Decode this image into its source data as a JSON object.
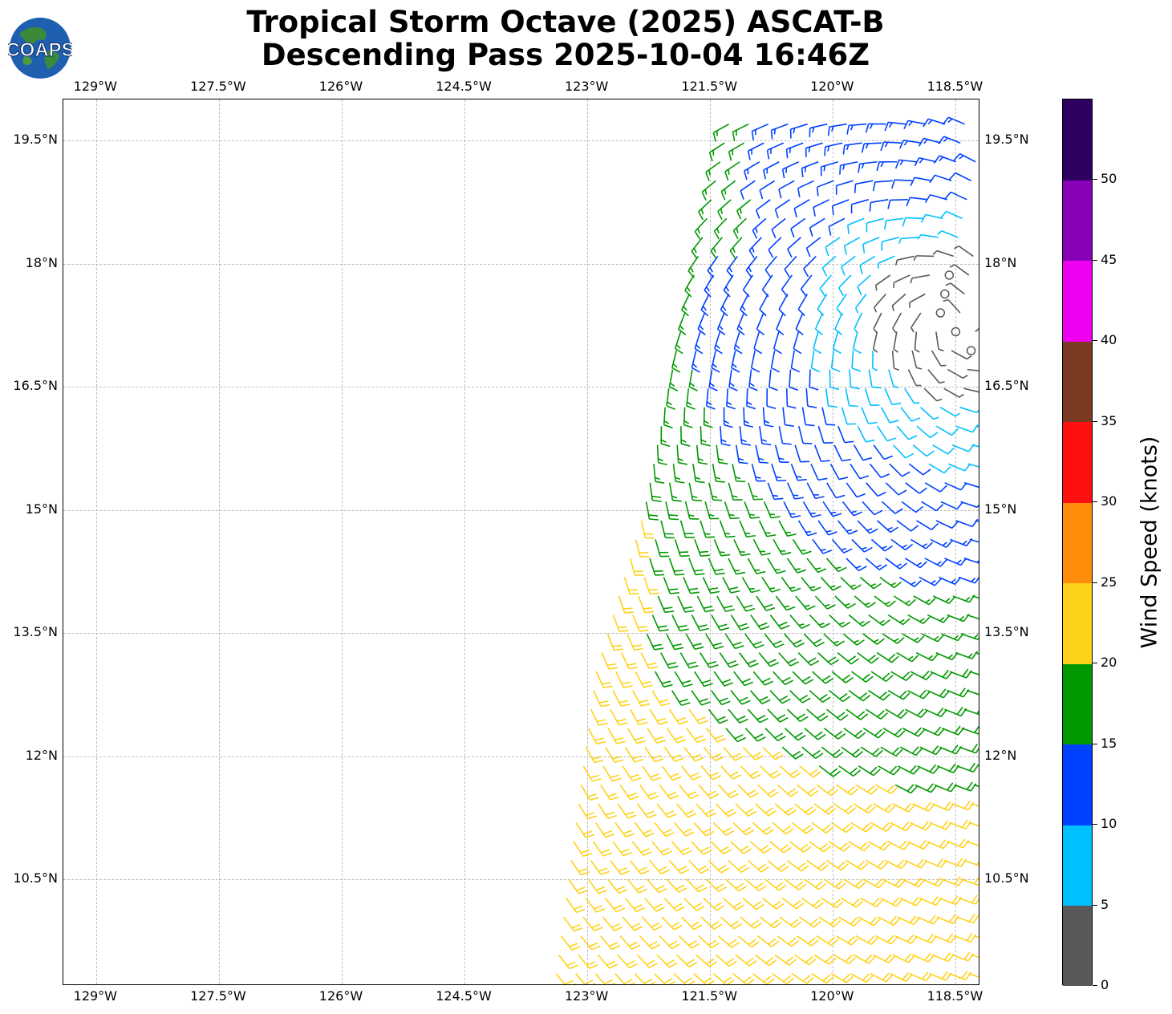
{
  "title": {
    "line1": "Tropical Storm Octave (2025) ASCAT-B",
    "line2": "Descending Pass 2025-10-04 16:46Z"
  },
  "logo": {
    "text": "COAPS",
    "ocean_color": "#1f5fb0",
    "land_color": "#3a8a3a"
  },
  "map": {
    "lon_range": [
      -129.4,
      -118.2
    ],
    "lat_range": [
      9.2,
      20.0
    ],
    "lon_ticks": [
      "129°W",
      "127.5°W",
      "126°W",
      "124.5°W",
      "123°W",
      "121.5°W",
      "120°W",
      "118.5°W"
    ],
    "lon_tick_values": [
      -129,
      -127.5,
      -126,
      -124.5,
      -123,
      -121.5,
      -120,
      -118.5
    ],
    "lat_ticks": [
      "19.5°N",
      "18°N",
      "16.5°N",
      "15°N",
      "13.5°N",
      "12°N",
      "10.5°N"
    ],
    "lat_tick_values": [
      19.5,
      18,
      16.5,
      15,
      13.5,
      12,
      10.5
    ],
    "grid": true
  },
  "wind_field": {
    "center_lon": -118.5,
    "center_lat": 17.3,
    "swath_lon_min_at_lat": [
      [
        9.2,
        -123.4
      ],
      [
        13.0,
        -122.9
      ],
      [
        15.0,
        -122.3
      ],
      [
        17.0,
        -121.9
      ],
      [
        20.0,
        -121.2
      ]
    ],
    "calm_radius_deg": 0.6
  },
  "colorbar": {
    "label": "Wind Speed (knots)",
    "ticks": [
      "0",
      "5",
      "10",
      "15",
      "20",
      "25",
      "30",
      "35",
      "40",
      "45",
      "50"
    ],
    "bins": [
      {
        "min": 0,
        "max": 5,
        "color": "#595959"
      },
      {
        "min": 5,
        "max": 10,
        "color": "#00bfff"
      },
      {
        "min": 10,
        "max": 15,
        "color": "#0040ff"
      },
      {
        "min": 15,
        "max": 20,
        "color": "#009900"
      },
      {
        "min": 20,
        "max": 25,
        "color": "#ffd21a"
      },
      {
        "min": 25,
        "max": 30,
        "color": "#ff8c0a"
      },
      {
        "min": 30,
        "max": 35,
        "color": "#ff1010"
      },
      {
        "min": 35,
        "max": 40,
        "color": "#7a3b22"
      },
      {
        "min": 40,
        "max": 45,
        "color": "#f000f0"
      },
      {
        "min": 45,
        "max": 50,
        "color": "#8800b8"
      },
      {
        "min": 50,
        "max": 55,
        "color": "#2e0060"
      }
    ]
  }
}
